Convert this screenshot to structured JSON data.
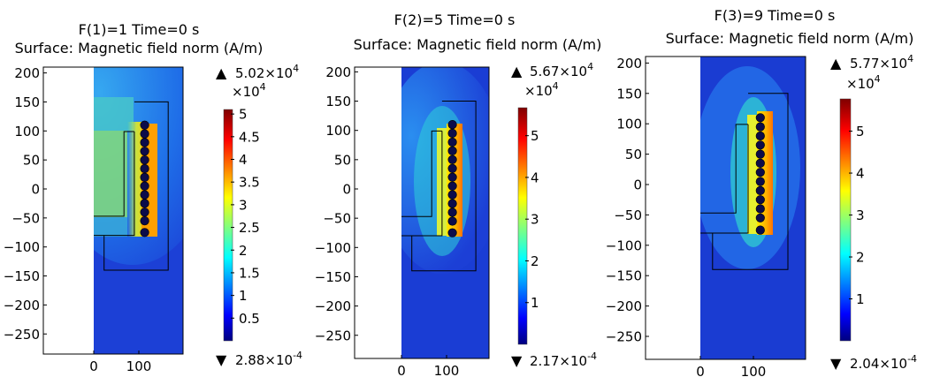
{
  "panels": [
    {
      "title_line1": "F(1)=1 Time=0 s",
      "title_line2": "Surface: Magnetic field norm (A/m)",
      "y_ticks": [
        200,
        150,
        100,
        50,
        0,
        -50,
        -100,
        -150,
        -200,
        -250
      ],
      "x_ticks": [
        0,
        100
      ],
      "colorbar": {
        "max_label": "5.02×10",
        "max_exp": "4",
        "scale_label": "×10",
        "scale_exp": "4",
        "min_label": "2.88×10",
        "min_exp": "-4",
        "ticks": [
          "5",
          "4.5",
          "4",
          "3.5",
          "3",
          "2.5",
          "2",
          "1.5",
          "1",
          "0.5"
        ],
        "tick_values": [
          5,
          4.5,
          4,
          3.5,
          3,
          2.5,
          2,
          1.5,
          1,
          0.5
        ],
        "max_value": 5.02
      }
    },
    {
      "title_line1": "F(2)=5 Time=0 s",
      "title_line2": "Surface: Magnetic field norm (A/m)",
      "y_ticks": [
        200,
        150,
        100,
        50,
        0,
        -50,
        -100,
        -150,
        -200,
        -250
      ],
      "x_ticks": [
        0,
        100
      ],
      "colorbar": {
        "max_label": "5.67×10",
        "max_exp": "4",
        "scale_label": "×10",
        "scale_exp": "4",
        "min_label": "2.17×10",
        "min_exp": "-4",
        "ticks": [
          "5",
          "4",
          "3",
          "2",
          "1"
        ],
        "tick_values": [
          5,
          4,
          3,
          2,
          1
        ],
        "max_value": 5.67
      }
    },
    {
      "title_line1": "F(3)=9 Time=0 s",
      "title_line2": "Surface: Magnetic field norm (A/m)",
      "y_ticks": [
        200,
        150,
        100,
        50,
        0,
        -50,
        -100,
        -150,
        -200,
        -250
      ],
      "x_ticks": [
        0,
        100
      ],
      "colorbar": {
        "max_label": "5.77×10",
        "max_exp": "4",
        "scale_label": "×10",
        "scale_exp": "4",
        "min_label": "2.04×10",
        "min_exp": "-4",
        "ticks": [
          "5",
          "4",
          "3",
          "2",
          "1"
        ],
        "tick_values": [
          5,
          4,
          3,
          2,
          1
        ],
        "max_value": 5.77
      }
    }
  ],
  "colors": {
    "jet_low": "#00007f",
    "field_low": "#1f55e8",
    "field_mid": "#21c4c9",
    "field_hot": "#ffd000",
    "coil": "#0c0c4a"
  }
}
